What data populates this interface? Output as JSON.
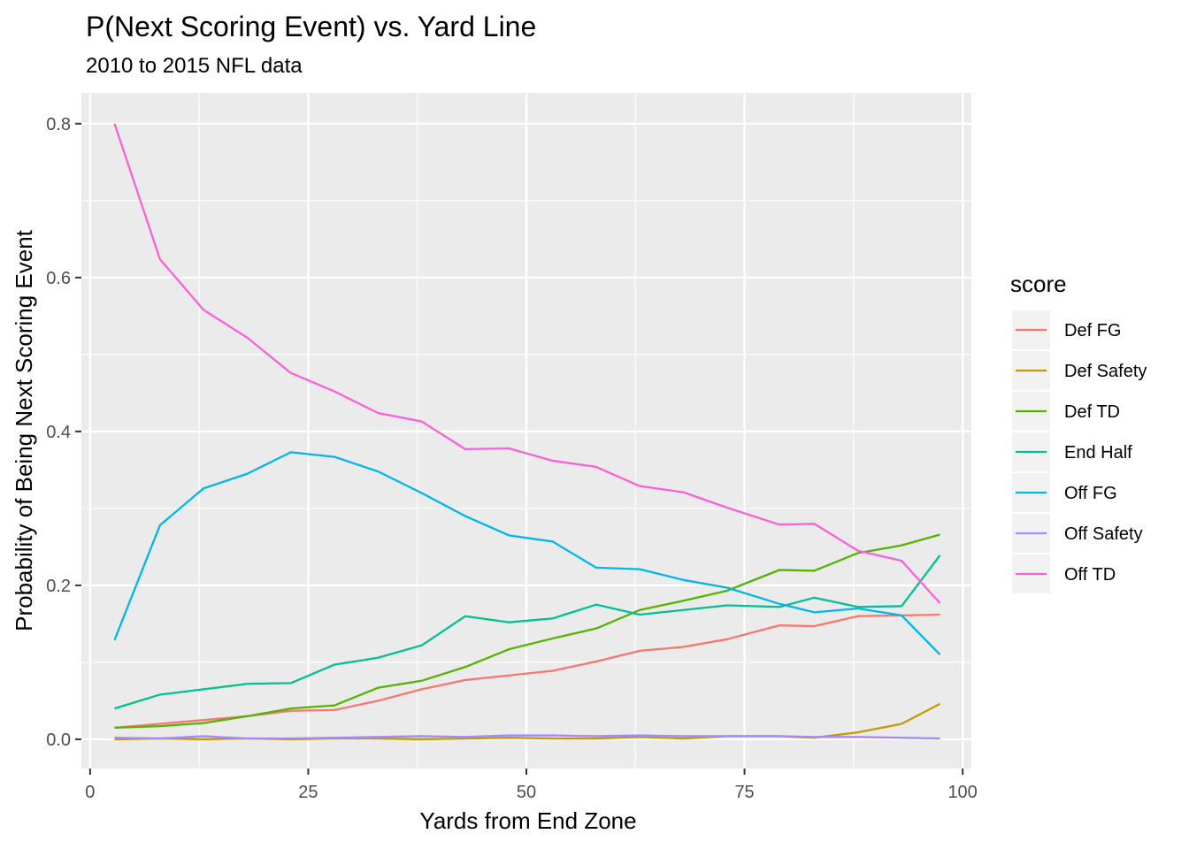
{
  "chart_data": {
    "type": "line",
    "title": "P(Next Scoring Event) vs. Yard Line",
    "subtitle": "2010 to 2015 NFL data",
    "xlabel": "Yards from End Zone",
    "ylabel": "Probability of Being Next Scoring Event",
    "xlim": [
      -1,
      101
    ],
    "ylim": [
      -0.038,
      0.84
    ],
    "grid": true,
    "legend_position": "right",
    "legend_title": "score",
    "x_ticks": [
      0,
      25,
      50,
      75,
      100
    ],
    "y_ticks": [
      0.0,
      0.2,
      0.4,
      0.6,
      0.8
    ],
    "x_tick_labels": [
      "0",
      "25",
      "50",
      "75",
      "100"
    ],
    "y_tick_labels": [
      "0.0",
      "0.2",
      "0.4",
      "0.6",
      "0.8"
    ],
    "x": [
      2.8,
      8,
      13,
      18,
      23,
      28,
      33,
      38,
      43,
      48,
      53,
      58,
      63,
      68,
      73,
      79,
      83,
      88,
      93,
      97.4
    ],
    "series": [
      {
        "name": "Def FG",
        "color": "#F8766D",
        "values": [
          0.015,
          0.02,
          0.025,
          0.03,
          0.037,
          0.038,
          0.05,
          0.065,
          0.077,
          0.083,
          0.089,
          0.101,
          0.115,
          0.12,
          0.13,
          0.148,
          0.147,
          0.16,
          0.161,
          0.162
        ]
      },
      {
        "name": "Def Safety",
        "color": "#C49A00",
        "values": [
          0.0,
          0.001,
          0.0,
          0.001,
          0.0,
          0.001,
          0.001,
          0.0,
          0.001,
          0.002,
          0.001,
          0.001,
          0.003,
          0.001,
          0.004,
          0.004,
          0.002,
          0.009,
          0.02,
          0.046
        ]
      },
      {
        "name": "Def TD",
        "color": "#53B400",
        "values": [
          0.015,
          0.017,
          0.021,
          0.03,
          0.04,
          0.044,
          0.067,
          0.076,
          0.094,
          0.117,
          0.131,
          0.144,
          0.168,
          0.18,
          0.193,
          0.22,
          0.219,
          0.242,
          0.252,
          0.266
        ]
      },
      {
        "name": "End Half",
        "color": "#00C094",
        "values": [
          0.04,
          0.058,
          0.065,
          0.072,
          0.073,
          0.097,
          0.106,
          0.122,
          0.16,
          0.152,
          0.157,
          0.175,
          0.162,
          0.168,
          0.174,
          0.172,
          0.184,
          0.172,
          0.173,
          0.239
        ]
      },
      {
        "name": "Off FG",
        "color": "#00B6EB",
        "values": [
          0.129,
          0.278,
          0.326,
          0.345,
          0.373,
          0.367,
          0.348,
          0.32,
          0.29,
          0.265,
          0.257,
          0.223,
          0.221,
          0.207,
          0.197,
          0.176,
          0.165,
          0.17,
          0.161,
          0.11
        ]
      },
      {
        "name": "Off Safety",
        "color": "#A58AFF",
        "values": [
          0.002,
          0.001,
          0.004,
          0.001,
          0.001,
          0.002,
          0.003,
          0.004,
          0.003,
          0.005,
          0.005,
          0.004,
          0.005,
          0.004,
          0.004,
          0.004,
          0.003,
          0.003,
          0.002,
          0.001
        ]
      },
      {
        "name": "Off TD",
        "color": "#FB61D7",
        "values": [
          0.8,
          0.624,
          0.558,
          0.522,
          0.476,
          0.452,
          0.424,
          0.413,
          0.377,
          0.378,
          0.362,
          0.354,
          0.329,
          0.321,
          0.301,
          0.279,
          0.28,
          0.245,
          0.232,
          0.177
        ]
      }
    ]
  }
}
